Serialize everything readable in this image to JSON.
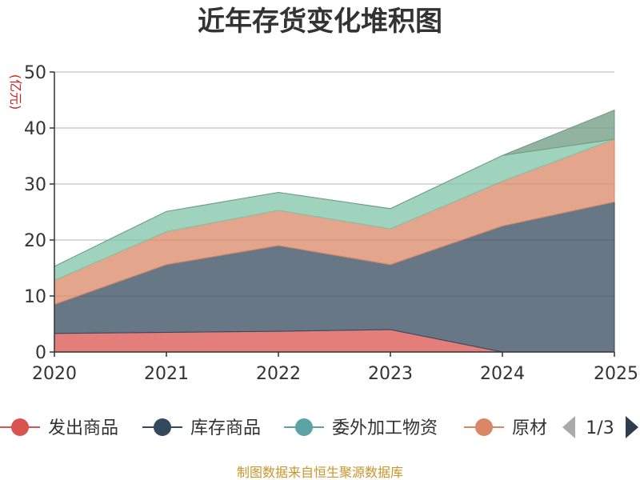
{
  "chart_data": {
    "type": "area",
    "stacked": true,
    "title": "近年存货变化堆积图",
    "ylabel": "亿元",
    "ylim": [
      0,
      50
    ],
    "yticks": [
      0,
      10,
      20,
      30,
      40,
      50
    ],
    "x": [
      "2020",
      "2021",
      "2022",
      "2023",
      "2024",
      "2025"
    ],
    "series": [
      {
        "name": "发出商品",
        "color": "#d9534f",
        "values": [
          3.3,
          3.5,
          3.7,
          4.0,
          0.0,
          0.0
        ]
      },
      {
        "name": "库存商品",
        "color": "#34495e",
        "values": [
          5.2,
          12.1,
          15.3,
          11.6,
          22.5,
          26.8
        ]
      },
      {
        "name": "委外加工物资",
        "color": "#5ba3a5",
        "values": [
          0.0,
          0.0,
          0.0,
          0.0,
          0.0,
          0.0
        ]
      },
      {
        "name": "原材料",
        "color": "#d98766",
        "values": [
          4.3,
          5.9,
          6.3,
          6.4,
          8.0,
          11.2
        ]
      },
      {
        "name": "",
        "color": "#7fc4a8",
        "values": [
          2.5,
          3.6,
          3.2,
          3.6,
          4.6,
          0.0
        ]
      },
      {
        "name": "",
        "color": "#6e9a80",
        "values": [
          0.0,
          0.0,
          0.0,
          0.0,
          0.0,
          5.2
        ]
      }
    ],
    "grid": true,
    "legend": {
      "position": "bottom",
      "visible_entries": [
        "发出商品",
        "库存商品",
        "委外加工物资",
        "原材"
      ],
      "page": "1/3"
    }
  },
  "source": "制图数据来自恒生聚源数据库"
}
